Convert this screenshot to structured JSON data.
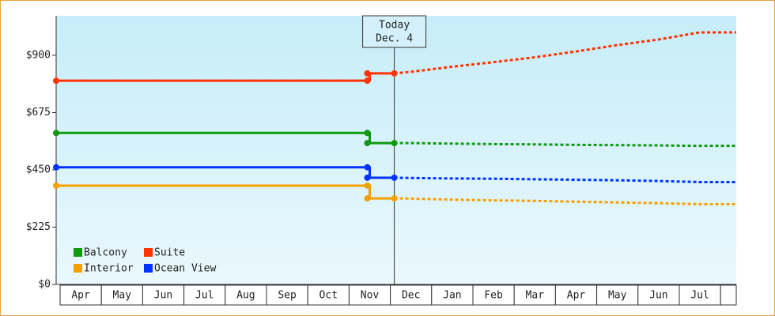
{
  "chart_data": {
    "type": "line",
    "categories": [
      "Apr",
      "May",
      "Jun",
      "Jul",
      "Aug",
      "Sep",
      "Oct",
      "Nov",
      "Dec",
      "Jan",
      "Feb",
      "Mar",
      "Apr",
      "May",
      "Jun",
      "Jul"
    ],
    "ylim": [
      0,
      1055
    ],
    "yticks": [
      {
        "value": 0,
        "label": "$0"
      },
      {
        "value": 225,
        "label": "$225"
      },
      {
        "value": 450,
        "label": "$450"
      },
      {
        "value": 675,
        "label": "$675"
      },
      {
        "value": 900,
        "label": "$900"
      }
    ],
    "step": true,
    "forecast_from": "Nov",
    "annotation": [
      "Today",
      "Dec. 4"
    ],
    "series": [
      {
        "name": "Balcony",
        "color": "#119911",
        "values": [
          595,
          595,
          595,
          595,
          595,
          595,
          595,
          555,
          555,
          553,
          551,
          550,
          548,
          547,
          546,
          544
        ]
      },
      {
        "name": "Suite",
        "color": "#ff3300",
        "values": [
          800,
          800,
          800,
          800,
          800,
          800,
          800,
          829,
          835,
          855,
          873,
          892,
          915,
          940,
          962,
          990
        ]
      },
      {
        "name": "Interior",
        "color": "#f5a000",
        "values": [
          388,
          388,
          388,
          388,
          388,
          388,
          388,
          338,
          337,
          333,
          330,
          328,
          325,
          322,
          319,
          315
        ]
      },
      {
        "name": "Ocean View",
        "color": "#0033ff",
        "values": [
          460,
          460,
          460,
          460,
          460,
          460,
          460,
          419,
          418,
          416,
          415,
          413,
          411,
          409,
          406,
          402
        ]
      }
    ]
  }
}
